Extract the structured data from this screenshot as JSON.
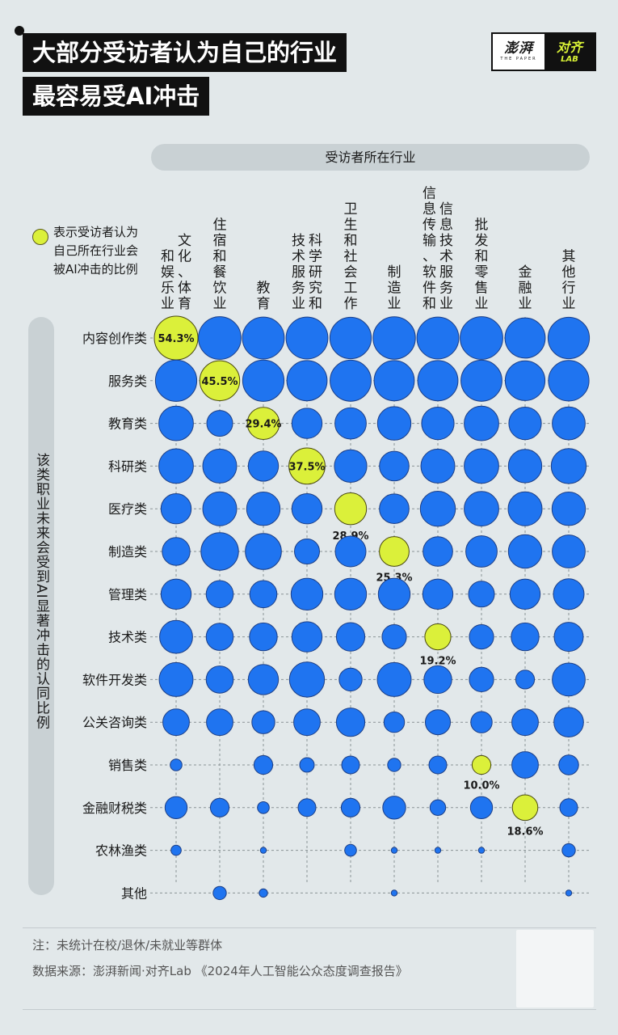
{
  "title": {
    "line1": "大部分受访者认为自己的行业",
    "line2": "最容易受AI冲击"
  },
  "logo": {
    "left_cn": "澎湃",
    "left_en": "THE PAPER",
    "right_cn": "对齐",
    "right_en": "LAB"
  },
  "legend": {
    "text": "表示受访者认为自己所在行业会被AI冲击的比例"
  },
  "notes": {
    "note": "注：未统计在校/退休/未就业等群体",
    "source": "数据来源：澎湃新闻·对齐Lab 《2024年人工智能公众态度调查报告》"
  },
  "colors": {
    "blue": "#1f74f0",
    "yellow": "#dbf03a",
    "background": "#e2e8ea",
    "pill": "#c9d1d4"
  },
  "chart_data": {
    "type": "bubble-matrix",
    "x_axis_title": "受访者所在行业",
    "y_axis_title": "该类职业未来会受到AI显著冲击的认同比例",
    "columns": [
      {
        "lines": [
          "文化、体育",
          "和娱乐业"
        ]
      },
      {
        "lines": [
          "住宿和餐饮业"
        ]
      },
      {
        "lines": [
          "教育"
        ]
      },
      {
        "lines": [
          "科学研究和",
          "技术服务业"
        ]
      },
      {
        "lines": [
          "卫生和社会工作"
        ]
      },
      {
        "lines": [
          "制造业"
        ]
      },
      {
        "lines": [
          "信息技术服务业",
          "信息传输、软件和"
        ]
      },
      {
        "lines": [
          "批发和零售业"
        ]
      },
      {
        "lines": [
          "金融业"
        ]
      },
      {
        "lines": [
          "其他行业"
        ]
      }
    ],
    "rows": [
      "内容创作类",
      "服务类",
      "教育类",
      "科研类",
      "医疗类",
      "制造类",
      "管理类",
      "技术类",
      "软件开发类",
      "公关咨询类",
      "销售类",
      "金融财税类",
      "农林渔类",
      "其他"
    ],
    "values": [
      [
        54.3,
        52,
        50,
        50,
        49,
        51,
        50,
        52,
        46,
        49
      ],
      [
        49,
        45.5,
        49,
        46,
        48,
        46,
        46,
        48,
        45,
        47
      ],
      [
        34,
        19,
        29.4,
        26,
        28,
        32,
        30,
        34,
        30,
        31
      ],
      [
        34,
        33,
        26,
        37.5,
        30,
        25,
        33,
        34,
        32,
        35
      ],
      [
        26,
        33,
        32,
        26,
        28.9,
        25,
        35,
        34,
        33,
        32
      ],
      [
        22,
        40,
        37,
        18,
        27,
        25.3,
        25,
        28,
        32,
        31
      ],
      [
        26,
        21,
        21,
        29,
        29,
        29,
        26,
        19,
        26,
        27
      ],
      [
        31,
        21,
        22,
        26,
        23,
        17,
        19.2,
        17,
        22,
        24
      ],
      [
        33,
        21,
        26,
        35,
        15,
        33,
        22,
        17,
        10,
        31
      ],
      [
        20,
        20,
        15,
        20,
        23,
        12,
        18,
        13,
        20,
        25
      ],
      [
        4,
        0,
        10,
        6,
        9,
        5,
        9,
        10.0,
        20,
        11
      ],
      [
        14,
        10,
        4,
        9,
        10,
        15,
        7,
        14,
        18.6,
        9
      ],
      [
        3,
        0,
        1,
        0,
        4,
        1,
        1,
        1,
        0,
        5
      ],
      [
        0,
        5,
        2,
        0,
        0,
        1,
        0,
        0,
        0,
        1
      ]
    ],
    "highlights": [
      {
        "row": 0,
        "col": 0,
        "label": "54.3%",
        "label_pos": "inside"
      },
      {
        "row": 1,
        "col": 1,
        "label": "45.5%",
        "label_pos": "inside"
      },
      {
        "row": 2,
        "col": 2,
        "label": "29.4%",
        "label_pos": "inside"
      },
      {
        "row": 3,
        "col": 3,
        "label": "37.5%",
        "label_pos": "inside"
      },
      {
        "row": 4,
        "col": 4,
        "label": "28.9%",
        "label_pos": "below"
      },
      {
        "row": 5,
        "col": 5,
        "label": "25.3%",
        "label_pos": "below"
      },
      {
        "row": 7,
        "col": 6,
        "label": "19.2%",
        "label_pos": "below"
      },
      {
        "row": 10,
        "col": 7,
        "label": "10.0%",
        "label_pos": "below"
      },
      {
        "row": 11,
        "col": 8,
        "label": "18.6%",
        "label_pos": "below"
      }
    ]
  }
}
